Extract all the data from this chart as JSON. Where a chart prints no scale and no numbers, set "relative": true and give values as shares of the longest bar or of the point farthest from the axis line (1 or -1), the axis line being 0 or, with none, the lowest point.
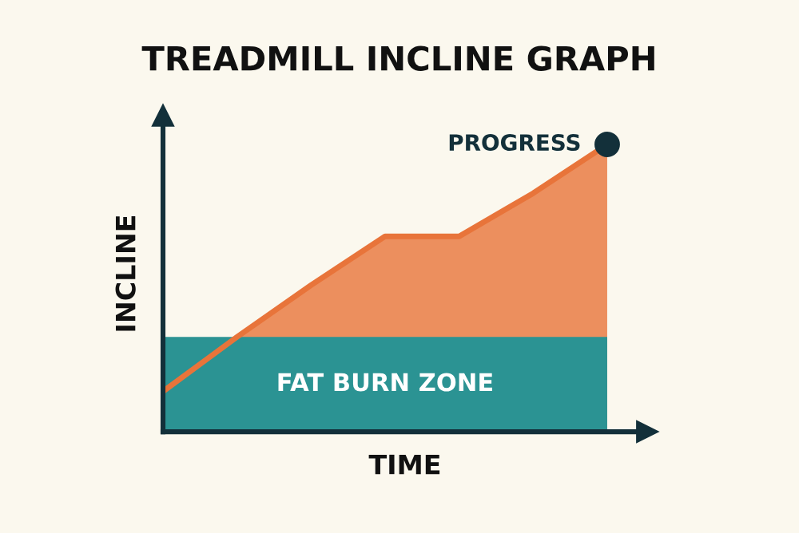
{
  "chart_data": {
    "type": "area",
    "title": "TREADMILL INCLINE GRAPH",
    "xlabel": "TIME",
    "ylabel": "INCLINE",
    "relative": true,
    "tick_labels": false,
    "legend": false,
    "grid": false,
    "categories": [
      null,
      null,
      null,
      null,
      null,
      null,
      null
    ],
    "series": [
      {
        "color": "#e8743a",
        "values": [
          0.14,
          0.33,
          0.51,
          0.68,
          0.68,
          0.83,
          1.0
        ]
      }
    ],
    "bands": [
      {
        "axis": "y",
        "from": 0,
        "to": 0.33,
        "label": "FAT BURN ZONE",
        "color": "#2b9393"
      }
    ],
    "annotations": [
      "PROGRESS"
    ]
  }
}
